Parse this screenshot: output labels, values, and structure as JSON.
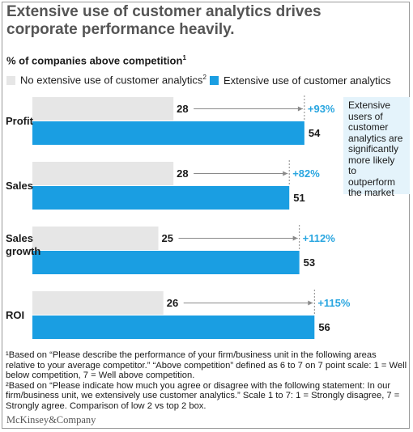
{
  "title": "Extensive use of customer analytics drives corporate performance heavily.",
  "subtitle": "% of companies above competition",
  "subtitle_note": "1",
  "legend": [
    {
      "label": "No extensive use of customer analytics",
      "note": "2",
      "color": "#e6e6e6"
    },
    {
      "label": "Extensive use of customer analytics",
      "note": "",
      "color": "#1a9ee2"
    }
  ],
  "callout": "Extensive users of customer analytics are significantly more likely to outperform the market",
  "chart_data": {
    "type": "bar",
    "orientation": "horizontal",
    "categories": [
      "Profit",
      "Sales",
      "Sales growth",
      "ROI"
    ],
    "series": [
      {
        "name": "No extensive use of customer analytics",
        "values": [
          28,
          28,
          25,
          26
        ],
        "color": "#e6e6e6"
      },
      {
        "name": "Extensive use of customer analytics",
        "values": [
          54,
          51,
          53,
          56
        ],
        "color": "#1a9ee2"
      }
    ],
    "annotations": [
      "+93%",
      "+82%",
      "+112%",
      "+115%"
    ]
  },
  "footnotes": [
    "¹Based on “Please describe the performance of your firm/business unit in the following areas relative to your average competitor.” “Above competition” defined as 6 to 7 on 7 point scale: 1 = Well below competition, 7 = Well above competition.",
    "²Based on “Please indicate how much you agree or disagree with the following statement: In our firm/business unit, we extensively use customer analytics.” Scale 1 to 7: 1 = Strongly disagree, 7 = Strongly agree. Comparison of low 2 vs top 2 box."
  ],
  "brand": "McKinsey&Company"
}
